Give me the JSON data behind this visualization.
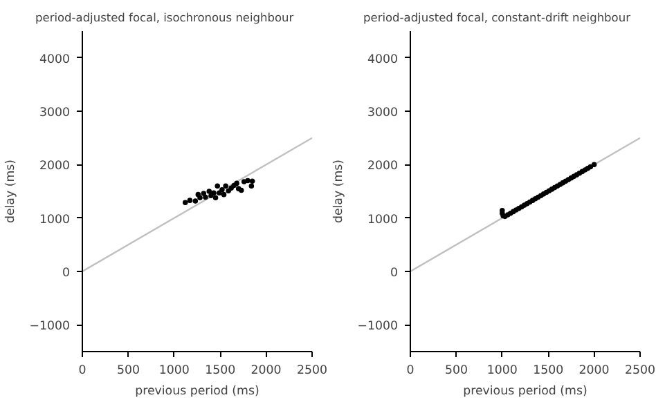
{
  "chart_data": [
    {
      "type": "scatter",
      "title": "period-adjusted focal, isochronous neighbour",
      "xlabel": "previous period (ms)",
      "ylabel": "delay (ms)",
      "xlim": [
        0,
        2500
      ],
      "ylim": [
        -1500,
        4500
      ],
      "xticks": [
        0,
        500,
        1000,
        1500,
        2000,
        2500
      ],
      "yticks": [
        {
          "value": -1000,
          "label": "−1000"
        },
        0,
        1000,
        2000,
        3000,
        4000
      ],
      "series": [
        {
          "type": "line",
          "color": "#c0c0c0",
          "x": [
            0,
            2500
          ],
          "values": [
            0,
            2500
          ]
        },
        {
          "marker": "circle",
          "color": "#000000",
          "x": [
            1120,
            1170,
            1230,
            1260,
            1280,
            1320,
            1340,
            1380,
            1400,
            1430,
            1450,
            1470,
            1490,
            1520,
            1540,
            1560,
            1590,
            1620,
            1650,
            1680,
            1700,
            1730,
            1760,
            1800,
            1840,
            1850
          ],
          "values": [
            1290,
            1330,
            1320,
            1440,
            1380,
            1460,
            1390,
            1500,
            1420,
            1470,
            1380,
            1600,
            1470,
            1530,
            1440,
            1600,
            1510,
            1560,
            1610,
            1650,
            1550,
            1520,
            1680,
            1700,
            1600,
            1690
          ]
        }
      ]
    },
    {
      "type": "scatter",
      "title": "period-adjusted focal, constant-drift neighbour",
      "xlabel": "previous period (ms)",
      "ylabel": "delay (ms)",
      "xlim": [
        0,
        2500
      ],
      "ylim": [
        -1500,
        4500
      ],
      "xticks": [
        0,
        500,
        1000,
        1500,
        2000,
        2500
      ],
      "yticks": [
        {
          "value": -1000,
          "label": "−1000"
        },
        0,
        1000,
        2000,
        3000,
        4000
      ],
      "series": [
        {
          "type": "line",
          "color": "#c0c0c0",
          "x": [
            0,
            2500
          ],
          "values": [
            0,
            2500
          ]
        },
        {
          "marker": "circle",
          "color": "#000000",
          "x": [
            1000,
            1000,
            1010,
            1030,
            1060,
            1090,
            1120,
            1150,
            1180,
            1210,
            1240,
            1270,
            1300,
            1330,
            1360,
            1390,
            1420,
            1450,
            1480,
            1510,
            1540,
            1570,
            1600,
            1630,
            1660,
            1690,
            1720,
            1750,
            1780,
            1810,
            1840,
            1870,
            1900,
            1930,
            1960,
            2000
          ],
          "values": [
            1140,
            1090,
            1040,
            1030,
            1060,
            1090,
            1120,
            1150,
            1180,
            1210,
            1240,
            1270,
            1300,
            1330,
            1360,
            1390,
            1420,
            1450,
            1480,
            1510,
            1540,
            1570,
            1600,
            1630,
            1660,
            1690,
            1720,
            1750,
            1780,
            1810,
            1840,
            1870,
            1900,
            1930,
            1960,
            2000
          ]
        }
      ]
    }
  ]
}
